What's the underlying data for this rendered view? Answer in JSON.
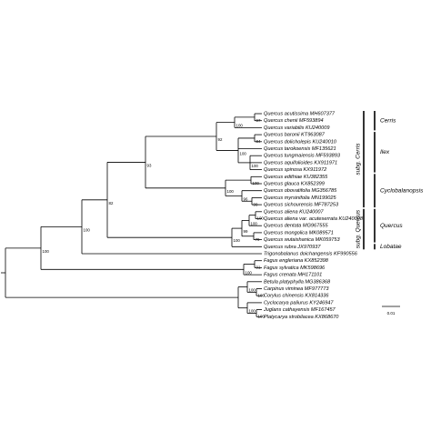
{
  "taxa": [
    "Quercus acutissima MH607377",
    "Quercus chenii MF593894",
    "Quercus variabilis KU240009",
    "Quercus baronii KT963087",
    "Quercus dolicholepis KU240010",
    "Quercus tarokoensis MF135621",
    "Quercus tungmaiensis MF593893",
    "Quercus aquifolioides KX911971",
    "Quercus spinosa KX911972",
    "Quercus edithiae KU382355",
    "Quercus glauca KX852399",
    "Quercus obovatifolia MG356785",
    "Quercus myrsinifolia MN199025",
    "Quercus sichourensis MF787253",
    "Quercus aliena KU240007",
    "Quercus aliena var. acuteserrata KU240008",
    "Quercus dentata MG967555",
    "Quercus mongolica MK089571",
    "Quercus wutaishanica MK059753",
    "Quercus rubra JX970937",
    "Trigonobalanus doichangensis KF990556",
    "Fagus engleriana KX852398",
    "Fagus sylvatica MK598696",
    "Fagus crenata MH171101",
    "Betula platyphylla MG386368",
    "Carpinus viminea MF977773",
    "Corylus chinensis KX814336",
    "Cyclocarya paliurus KY246947",
    "Juglans cathayensis MF167457",
    "Platycarya strobilacea KX868670"
  ],
  "support": [
    100,
    100,
    82,
    93,
    92,
    100,
    97,
    100,
    84,
    100,
    100,
    100,
    96,
    99,
    100,
    99,
    100,
    100,
    79,
    100,
    91,
    100,
    100,
    100,
    100
  ],
  "sections": [
    "Cerris",
    "Ilex",
    "Cyclobalanopsis",
    "Quercus",
    "Lobatae"
  ],
  "subgenera": [
    "subg. Cerris",
    "subg. Quercus"
  ],
  "scale_bar": "0.01"
}
